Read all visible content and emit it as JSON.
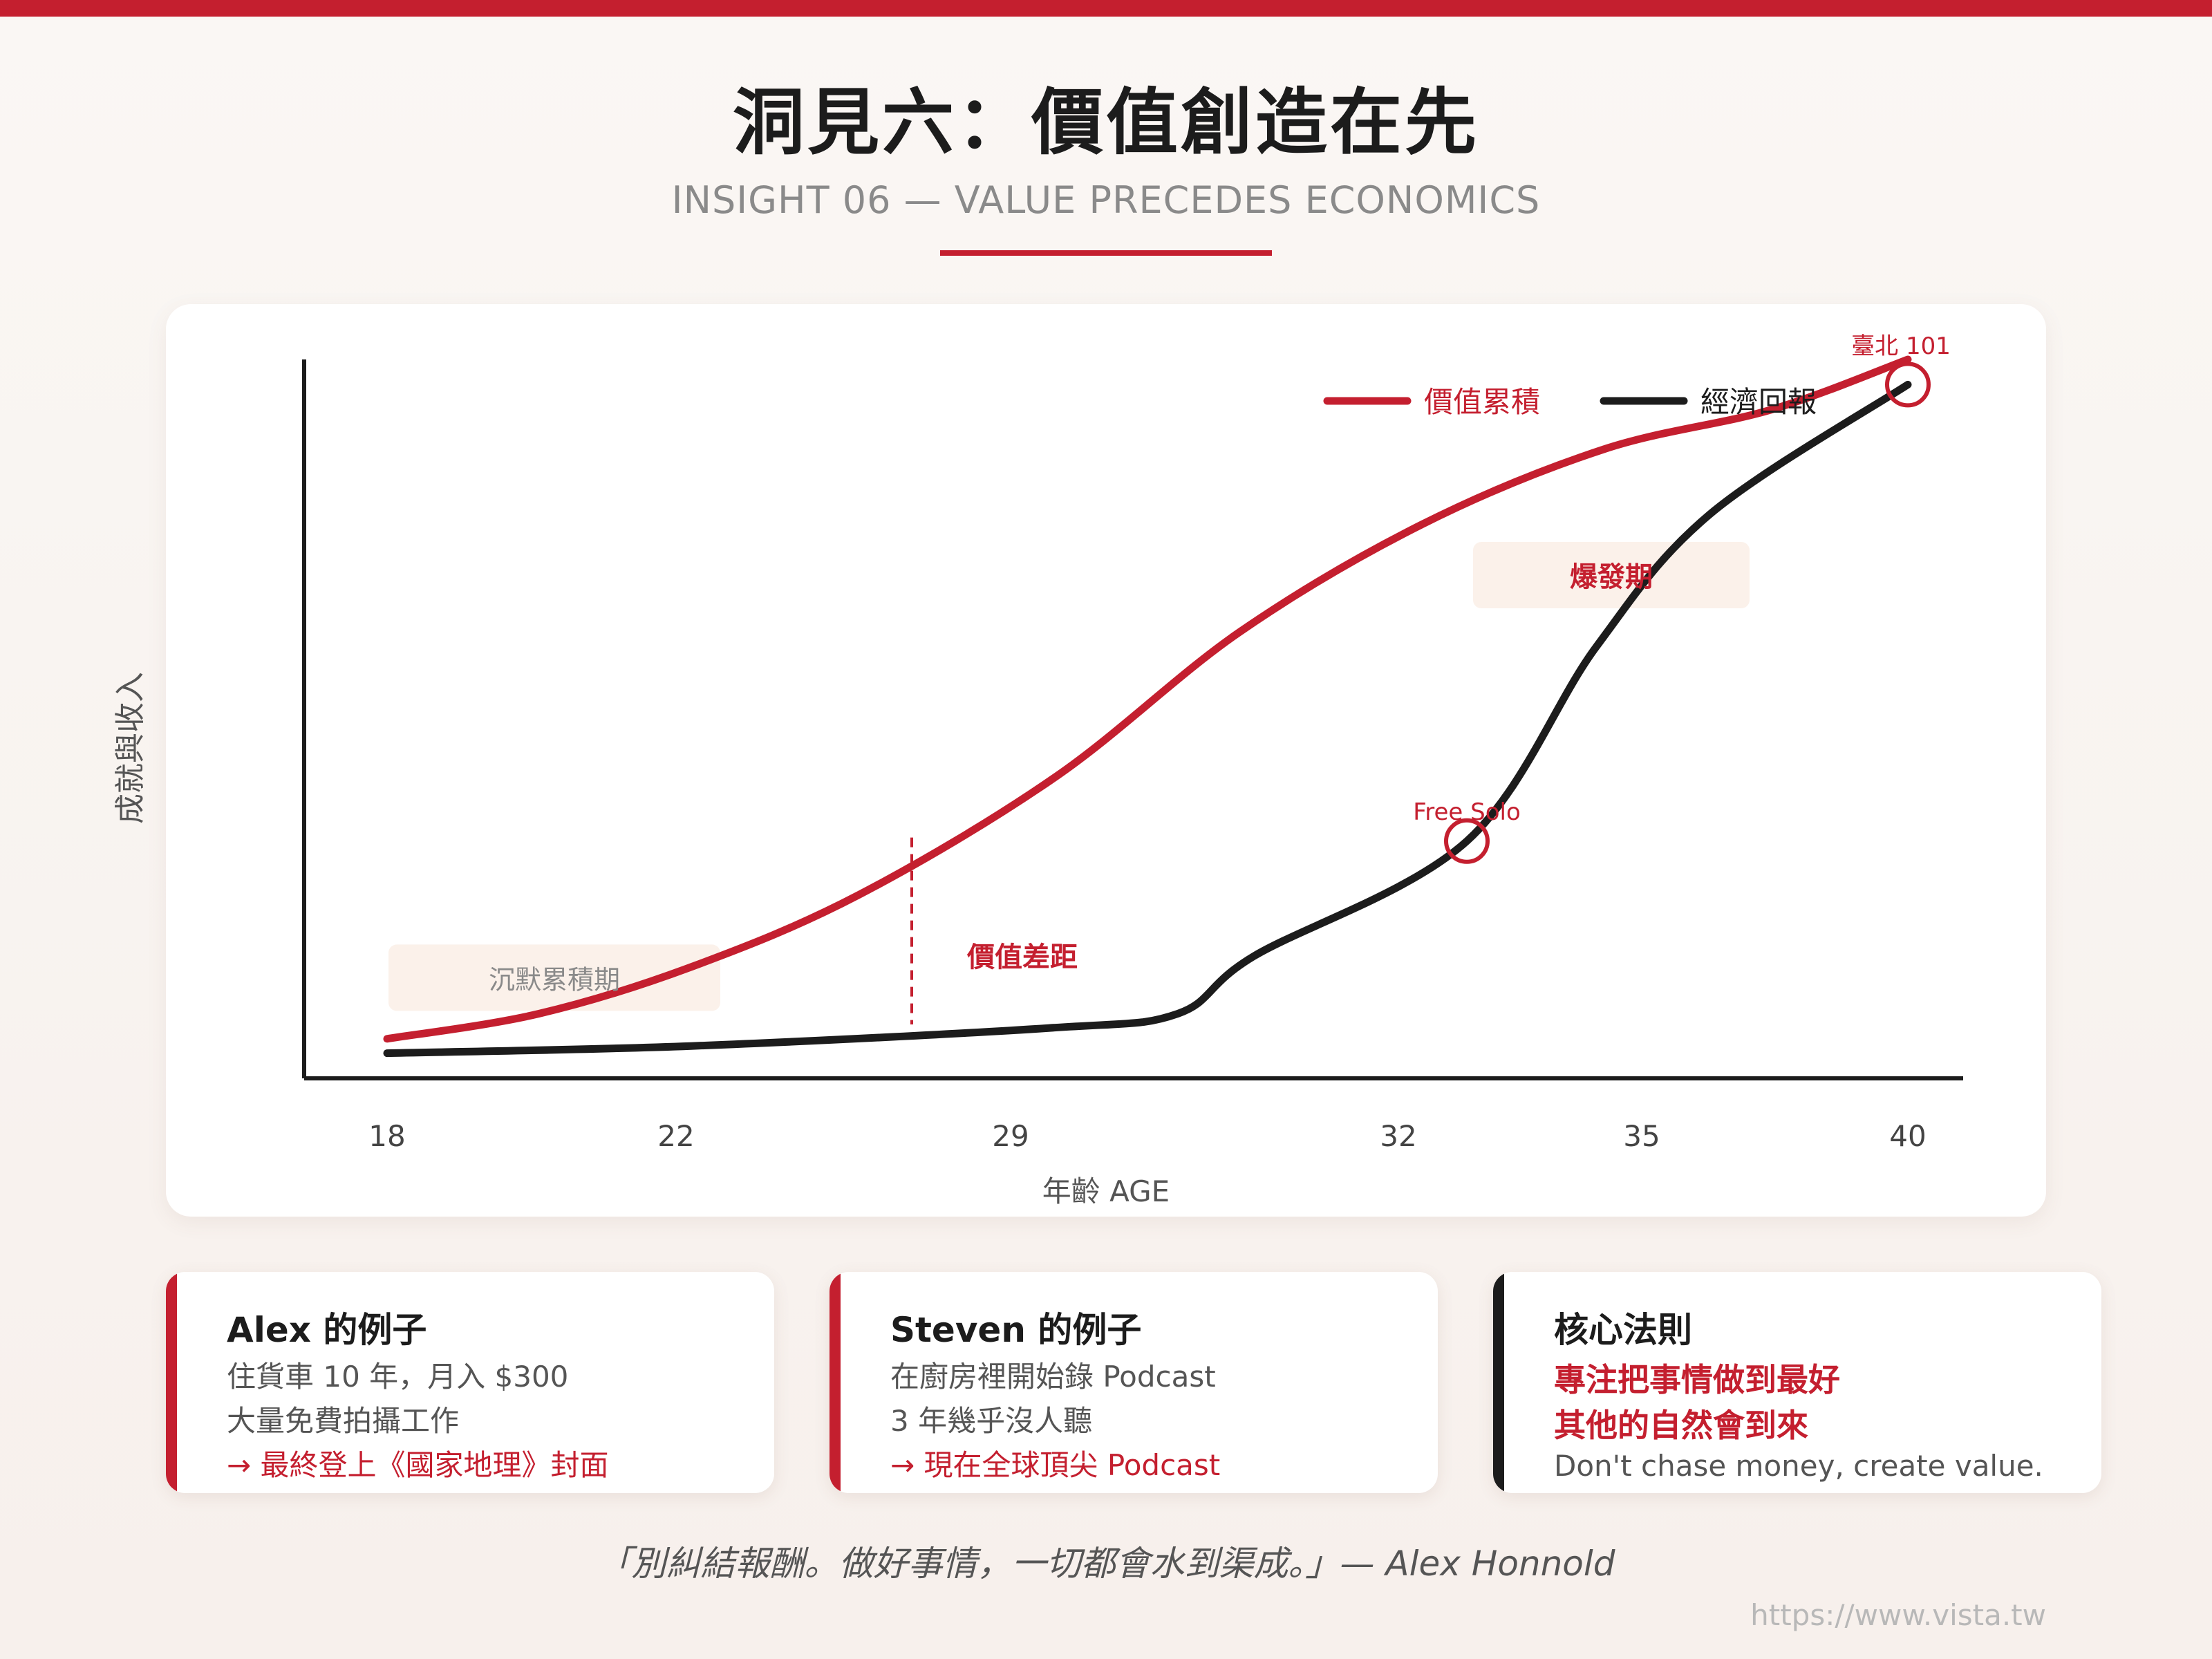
{
  "header": {
    "title": "洞見六：價值創造在先",
    "subtitle": "INSIGHT 06 — VALUE PRECEDES ECONOMICS"
  },
  "colors": {
    "accent": "#c41f2f",
    "dark": "#1c1c1c",
    "muted": "#8a8a8a",
    "band": "#fbefe8"
  },
  "chart_data": {
    "type": "line",
    "xlabel": "年齡 AGE",
    "ylabel": "成就與收入",
    "x_ticks": [
      "18",
      "22",
      "29",
      "32",
      "35",
      "40"
    ],
    "legend": {
      "placement": "top-right"
    },
    "grid": false,
    "ylim": [
      0,
      100
    ],
    "series": [
      {
        "name": "價值累積",
        "color": "#c41f2f",
        "points": [
          [
            0,
            5.5
          ],
          [
            10,
            9
          ],
          [
            20,
            15.5
          ],
          [
            31,
            25.5
          ],
          [
            44,
            42
          ],
          [
            56,
            62
          ],
          [
            68,
            77
          ],
          [
            80,
            87.5
          ],
          [
            91,
            93
          ],
          [
            100,
            100
          ]
        ]
      },
      {
        "name": "經濟回報",
        "color": "#1c1c1c",
        "points": [
          [
            0,
            3.5
          ],
          [
            20,
            4.5
          ],
          [
            43.5,
            7
          ],
          [
            52,
            9
          ],
          [
            57,
            17
          ],
          [
            71,
            33
          ],
          [
            79.5,
            60
          ],
          [
            87,
            78.5
          ],
          [
            100,
            96.5
          ]
        ]
      }
    ],
    "annotations": [
      {
        "id": "silent",
        "text": "沉默累積期",
        "x": 11,
        "y": 14
      },
      {
        "id": "gap",
        "text": "價值差距",
        "x": 34.5,
        "y_top": 33.5,
        "y_bottom": 7.5
      },
      {
        "id": "free-solo",
        "text": "Free Solo",
        "x": 71,
        "y": 33
      },
      {
        "id": "boom",
        "text": "爆發期",
        "x": 80.5,
        "y": 70
      },
      {
        "id": "taipei",
        "text": "臺北 101",
        "x": 100,
        "y": 96.5
      }
    ]
  },
  "cards": [
    {
      "title": "Alex 的例子",
      "lines": [
        "住貨車 10 年，月入 $300",
        "大量免費拍攝工作"
      ],
      "highlight": "→ 最終登上《國家地理》封面"
    },
    {
      "title": "Steven 的例子",
      "lines": [
        "在廚房裡開始錄 Podcast",
        "3 年幾乎沒人聽"
      ],
      "highlight": "→ 現在全球頂尖 Podcast"
    },
    {
      "title": "核心法則",
      "emphasis": [
        "專注把事情做到最好",
        "其他的自然會到來"
      ],
      "english": "Don't chase money, create value."
    }
  ],
  "quote": "「別糾結報酬。做好事情，一切都會水到渠成。」— Alex Honnold",
  "footer": {
    "url": "https://www.vista.tw"
  }
}
